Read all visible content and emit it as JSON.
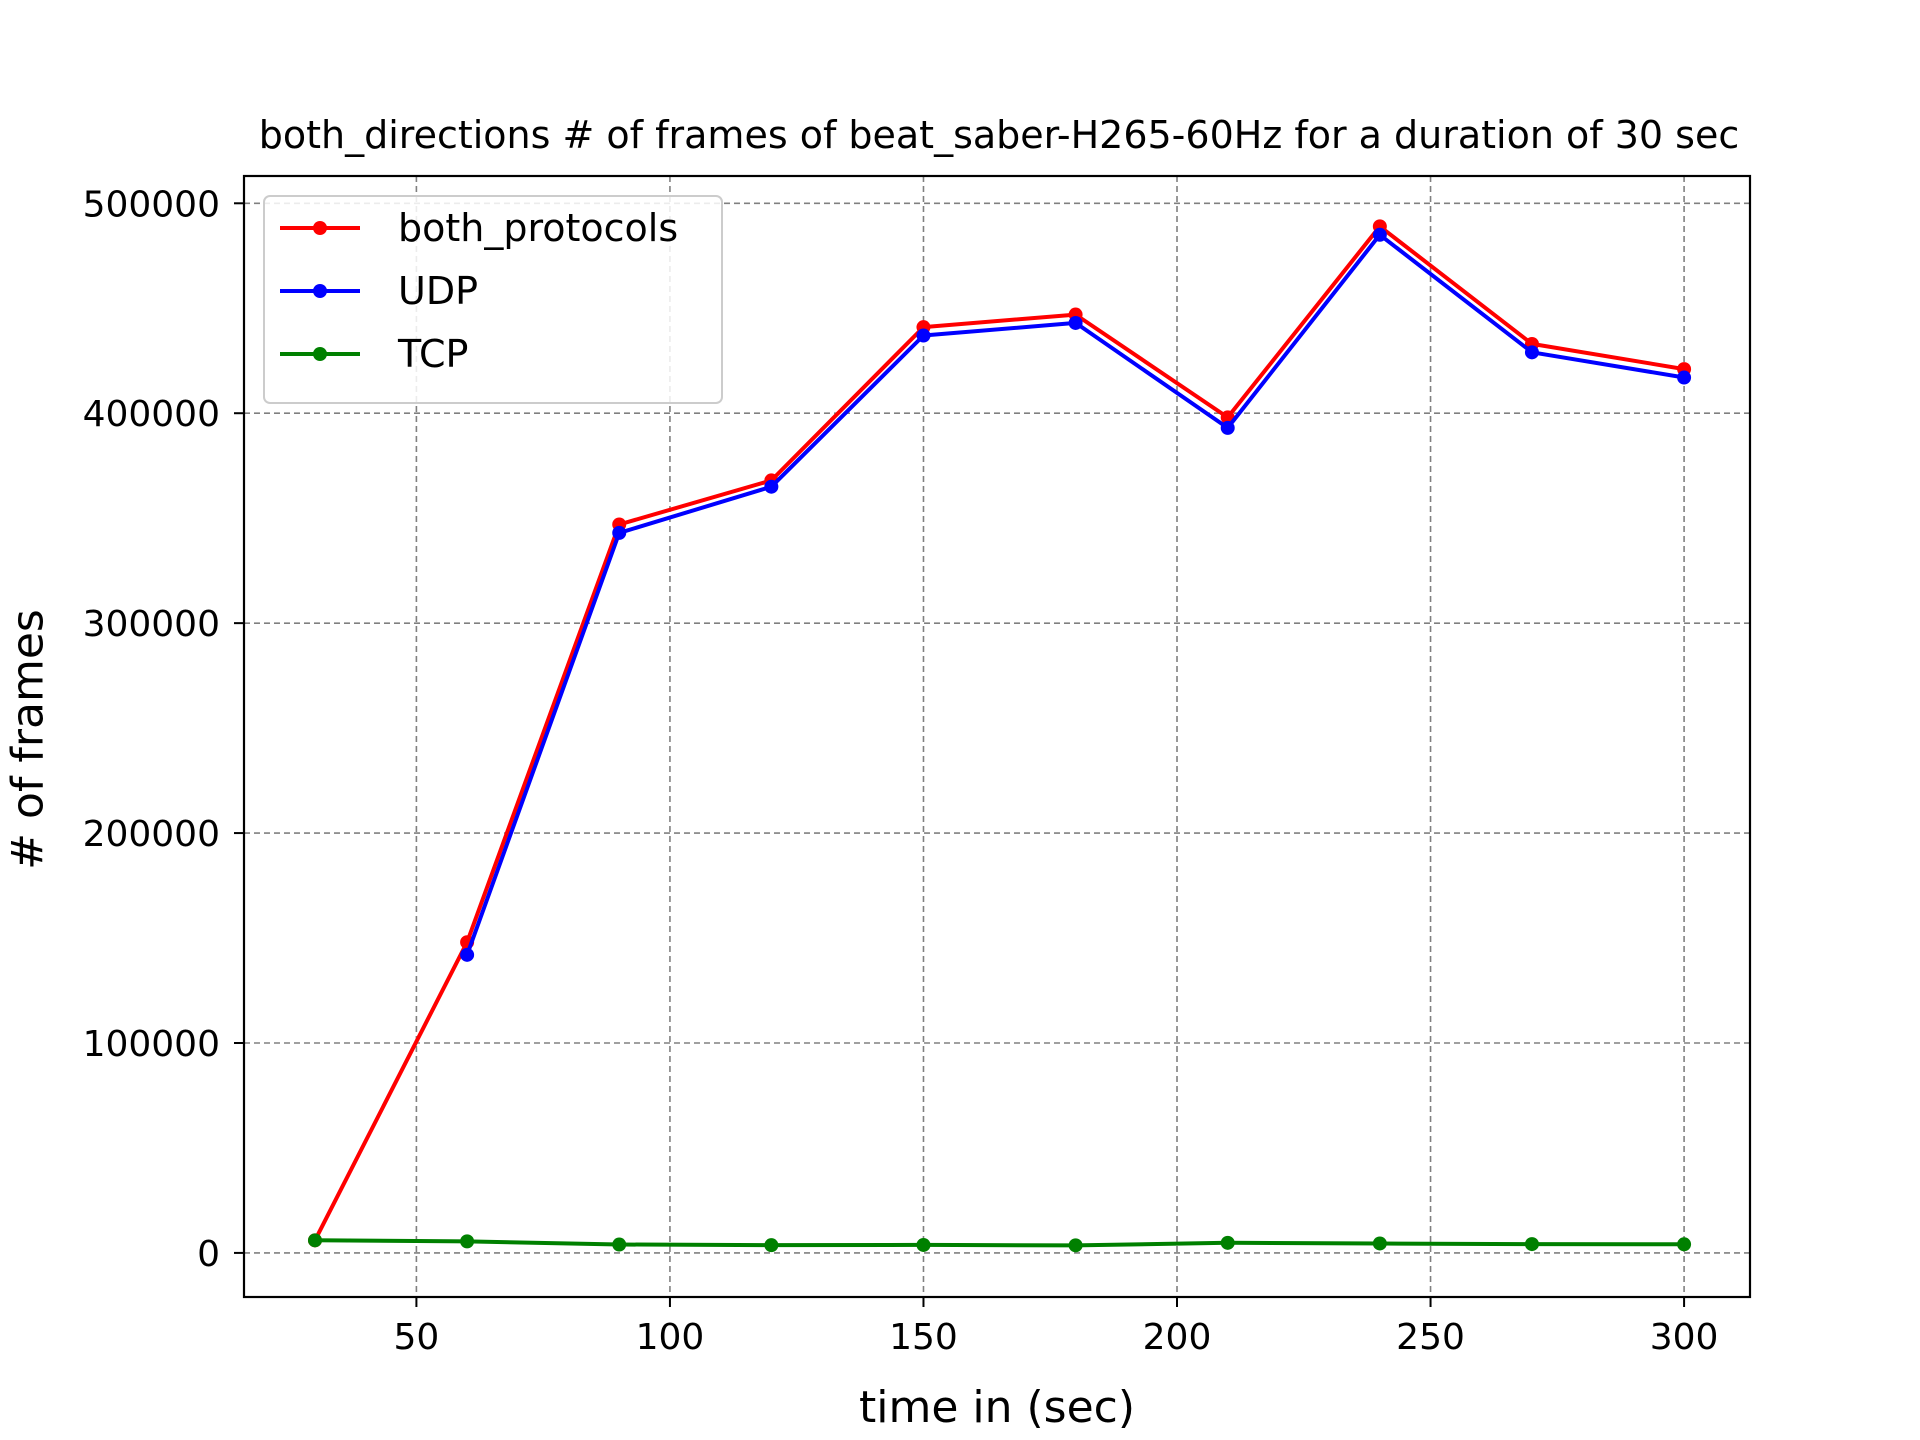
{
  "chart_data": {
    "type": "line",
    "title": "both_directions # of frames of beat_saber-H265-60Hz for a duration of 30 sec",
    "xlabel": "time in (sec)",
    "ylabel": "# of frames",
    "xlim": [
      16,
      313
    ],
    "ylim": [
      -21000,
      513000
    ],
    "xticks": [
      50,
      100,
      150,
      200,
      250,
      300
    ],
    "yticks": [
      0,
      100000,
      200000,
      300000,
      400000,
      500000
    ],
    "grid": true,
    "legend_position": "upper-left",
    "x": [
      30,
      60,
      90,
      120,
      150,
      180,
      210,
      240,
      270,
      300
    ],
    "series": [
      {
        "name": "both_protocols",
        "color": "#ff0000",
        "values": [
          6000,
          148000,
          347000,
          368000,
          441000,
          447000,
          398000,
          489000,
          433000,
          421000
        ]
      },
      {
        "name": "UDP",
        "color": "#0000ff",
        "values": [
          null,
          142000,
          343000,
          365000,
          437000,
          443000,
          393000,
          485000,
          429000,
          417000
        ]
      },
      {
        "name": "TCP",
        "color": "#008000",
        "values": [
          6000,
          5500,
          4000,
          3700,
          3800,
          3600,
          4800,
          4500,
          4200,
          4100
        ]
      }
    ]
  }
}
